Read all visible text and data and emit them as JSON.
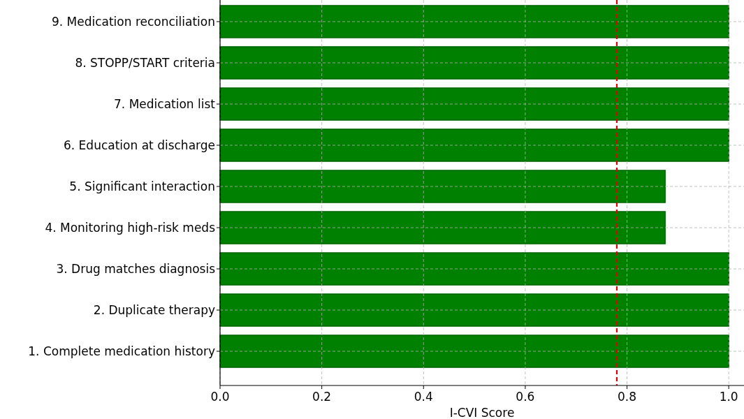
{
  "chart_data": {
    "type": "bar",
    "orientation": "horizontal",
    "xlabel": "I-CVI Score",
    "categories": [
      "9. Medication reconciliation",
      "8. STOPP/START criteria",
      "7. Medication list",
      "6. Education at discharge",
      "5. Significant interaction",
      "4. Monitoring high-risk meds",
      "3. Drug matches diagnosis",
      "2. Duplicate therapy",
      "1. Complete medication history"
    ],
    "values": [
      1.0,
      1.0,
      1.0,
      1.0,
      0.875,
      0.875,
      1.0,
      1.0,
      1.0
    ],
    "color": "#008000",
    "xlim": [
      0,
      1.03
    ],
    "xticks": [
      {
        "value": 0,
        "label": "0.0"
      },
      {
        "value": 0.2,
        "label": "0.2"
      },
      {
        "value": 0.4,
        "label": "0.4"
      },
      {
        "value": 0.6,
        "label": "0.6"
      },
      {
        "value": 0.8,
        "label": "0.8"
      },
      {
        "value": 1.0,
        "label": "1.0"
      }
    ],
    "grid": true,
    "ref_lines": [
      {
        "axis": "x",
        "value": 0.78,
        "color": "#e00000",
        "line_style": "dashed"
      }
    ]
  }
}
